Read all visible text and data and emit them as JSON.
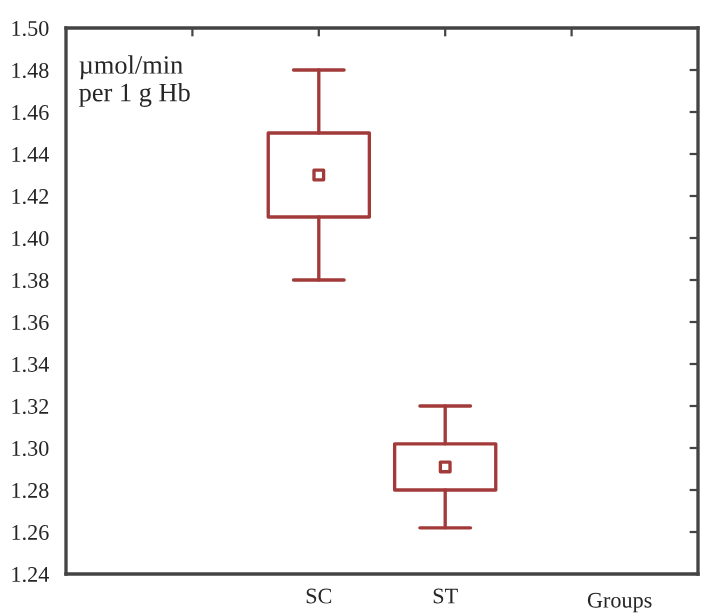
{
  "chart_data": {
    "type": "box",
    "xlabel": "Groups",
    "ylabel": "µmol/min\nper 1 g Hb",
    "categories": [
      null,
      "SC",
      "ST",
      null
    ],
    "boxes": [
      null,
      {
        "low": 1.38,
        "q1": 1.41,
        "median": 1.43,
        "q3": 1.45,
        "high": 1.48
      },
      {
        "low": 1.262,
        "q1": 1.28,
        "median": 1.291,
        "q3": 1.302,
        "high": 1.32
      },
      null
    ],
    "color": "#a33a3a",
    "ylim": [
      1.24,
      1.5
    ],
    "yticks": [
      1.24,
      1.26,
      1.28,
      {
        "value": 1.3,
        "label": "1.30"
      },
      1.32,
      1.34,
      1.36,
      1.38,
      {
        "value": 1.4,
        "label": "1.40"
      },
      1.42,
      1.44,
      1.46,
      1.48,
      {
        "value": 1.5,
        "label": "1.50"
      }
    ],
    "grid": false,
    "legend": false
  }
}
